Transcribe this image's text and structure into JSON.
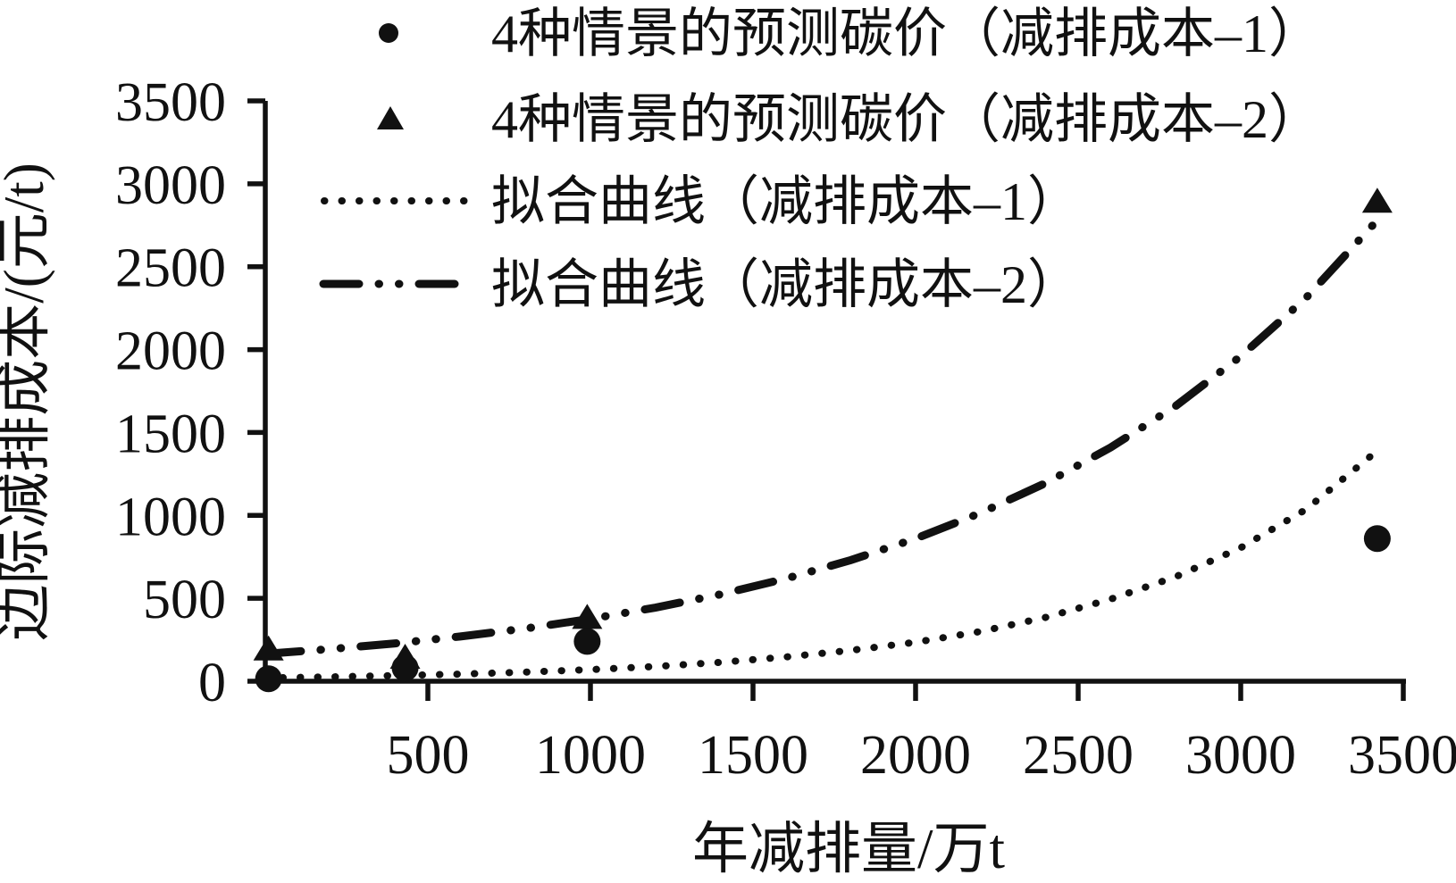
{
  "figure": {
    "background": "#ffffff",
    "ink_color": "#111111"
  },
  "chart_data": {
    "type": "scatter",
    "title": "",
    "xlabel": "年减排量/万t",
    "ylabel": "边际减排成本/(元/t)",
    "xlim": [
      0,
      3500
    ],
    "ylim": [
      0,
      3500
    ],
    "x_ticks": [
      500,
      1000,
      1500,
      2000,
      2500,
      3000,
      3500
    ],
    "y_ticks": [
      0,
      500,
      1000,
      1500,
      2000,
      2500,
      3000,
      3500
    ],
    "grid": false,
    "legend_position": "top-left-inside",
    "series": [
      {
        "name": "4种情景的预测碳价（减排成本–1）",
        "kind": "scatter",
        "marker": "circle",
        "points": [
          [
            10,
            15
          ],
          [
            430,
            80
          ],
          [
            990,
            240
          ],
          [
            3420,
            860
          ]
        ]
      },
      {
        "name": "4种情景的预测碳价（减排成本–2）",
        "kind": "scatter",
        "marker": "triangle",
        "points": [
          [
            10,
            190
          ],
          [
            430,
            140
          ],
          [
            990,
            380
          ],
          [
            3420,
            2890
          ]
        ]
      },
      {
        "name": "拟合曲线（减排成本–1）",
        "kind": "line",
        "style": "dotted",
        "points": [
          [
            0,
            20
          ],
          [
            200,
            26
          ],
          [
            400,
            34
          ],
          [
            600,
            43
          ],
          [
            800,
            55
          ],
          [
            1000,
            70
          ],
          [
            1200,
            89
          ],
          [
            1400,
            114
          ],
          [
            1600,
            146
          ],
          [
            1800,
            186
          ],
          [
            2000,
            235
          ],
          [
            2200,
            300
          ],
          [
            2400,
            385
          ],
          [
            2600,
            495
          ],
          [
            2800,
            630
          ],
          [
            3000,
            805
          ],
          [
            3200,
            1035
          ],
          [
            3420,
            1390
          ]
        ]
      },
      {
        "name": "拟合曲线（减排成本–2）",
        "kind": "line",
        "style": "dash-dot-dot",
        "points": [
          [
            0,
            165
          ],
          [
            200,
            194
          ],
          [
            400,
            228
          ],
          [
            600,
            270
          ],
          [
            800,
            318
          ],
          [
            1000,
            376
          ],
          [
            1200,
            444
          ],
          [
            1400,
            524
          ],
          [
            1600,
            618
          ],
          [
            1800,
            730
          ],
          [
            2000,
            860
          ],
          [
            2200,
            1015
          ],
          [
            2400,
            1195
          ],
          [
            2600,
            1410
          ],
          [
            2800,
            1660
          ],
          [
            3000,
            1960
          ],
          [
            3200,
            2310
          ],
          [
            3420,
            2780
          ]
        ]
      }
    ]
  }
}
